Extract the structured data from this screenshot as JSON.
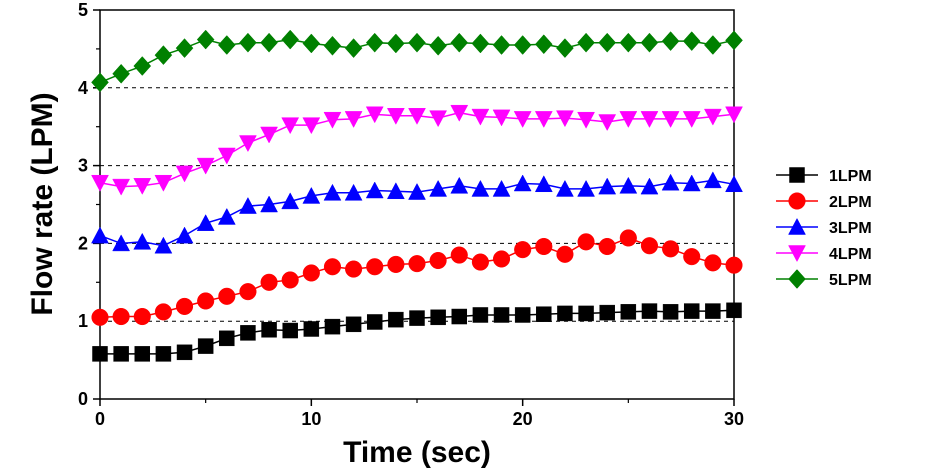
{
  "chart_data": {
    "type": "line",
    "xlabel": "Time (sec)",
    "ylabel": "Flow rate (LPM)",
    "xlim": [
      0,
      30
    ],
    "ylim": [
      0,
      5
    ],
    "xticks": [
      "0",
      "10",
      "20",
      "30"
    ],
    "yticks": [
      "0",
      "1",
      "2",
      "3",
      "4",
      "5"
    ],
    "grid": "horizontal dashed",
    "legend_position": "right",
    "x": [
      0,
      1,
      2,
      3,
      4,
      5,
      6,
      7,
      8,
      9,
      10,
      11,
      12,
      13,
      14,
      15,
      16,
      17,
      18,
      19,
      20,
      21,
      22,
      23,
      24,
      25,
      26,
      27,
      28,
      29,
      30
    ],
    "series": [
      {
        "name": "1LPM",
        "color": "#000000",
        "marker": "square",
        "values": [
          0.58,
          0.58,
          0.58,
          0.58,
          0.6,
          0.68,
          0.78,
          0.85,
          0.89,
          0.88,
          0.9,
          0.93,
          0.96,
          0.99,
          1.02,
          1.04,
          1.05,
          1.06,
          1.08,
          1.08,
          1.08,
          1.09,
          1.1,
          1.1,
          1.11,
          1.12,
          1.13,
          1.12,
          1.13,
          1.13,
          1.14
        ]
      },
      {
        "name": "2LPM",
        "color": "#ff0000",
        "marker": "circle",
        "values": [
          1.05,
          1.06,
          1.06,
          1.12,
          1.19,
          1.26,
          1.32,
          1.38,
          1.5,
          1.53,
          1.62,
          1.7,
          1.67,
          1.7,
          1.73,
          1.74,
          1.78,
          1.85,
          1.76,
          1.8,
          1.92,
          1.96,
          1.86,
          2.02,
          1.96,
          2.07,
          1.97,
          1.93,
          1.83,
          1.75,
          1.72
        ]
      },
      {
        "name": "3LPM",
        "color": "#0000ff",
        "marker": "triangle-up",
        "values": [
          2.1,
          2.0,
          2.02,
          1.97,
          2.1,
          2.26,
          2.34,
          2.48,
          2.5,
          2.54,
          2.61,
          2.65,
          2.65,
          2.68,
          2.67,
          2.66,
          2.7,
          2.74,
          2.7,
          2.7,
          2.77,
          2.76,
          2.7,
          2.7,
          2.73,
          2.74,
          2.73,
          2.78,
          2.77,
          2.81,
          2.76
        ]
      },
      {
        "name": "4LPM",
        "color": "#ff00ff",
        "marker": "triangle-down",
        "values": [
          2.78,
          2.73,
          2.74,
          2.78,
          2.9,
          3.0,
          3.13,
          3.29,
          3.4,
          3.52,
          3.52,
          3.59,
          3.6,
          3.66,
          3.64,
          3.64,
          3.61,
          3.68,
          3.63,
          3.62,
          3.6,
          3.6,
          3.61,
          3.59,
          3.56,
          3.6,
          3.6,
          3.6,
          3.6,
          3.63,
          3.66
        ]
      },
      {
        "name": "5LPM",
        "color": "#008000",
        "marker": "diamond",
        "values": [
          4.07,
          4.18,
          4.28,
          4.42,
          4.51,
          4.62,
          4.55,
          4.58,
          4.58,
          4.62,
          4.57,
          4.54,
          4.51,
          4.58,
          4.57,
          4.58,
          4.54,
          4.58,
          4.57,
          4.55,
          4.55,
          4.56,
          4.51,
          4.58,
          4.58,
          4.58,
          4.58,
          4.6,
          4.6,
          4.55,
          4.61
        ]
      }
    ]
  }
}
